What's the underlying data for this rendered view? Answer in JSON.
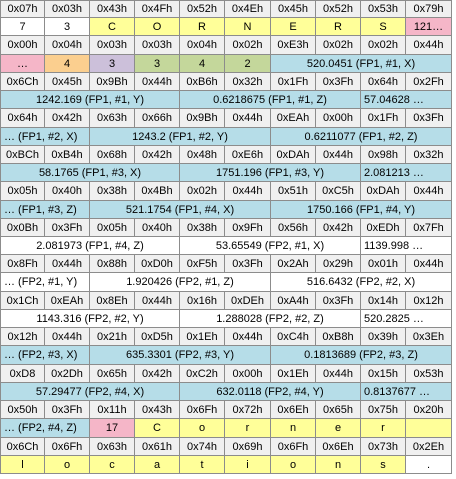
{
  "colors": {
    "white": "#ffffff",
    "grey": "#f0f0f0",
    "blue": "#b6dde8",
    "yellow": "#ffff99",
    "pink": "#f5b6c8",
    "orange": "#fbcf8f",
    "purple": "#ccc0da",
    "green": "#c4d79b"
  },
  "rows": [
    [
      {
        "t": "0x07h",
        "s": 1,
        "c": "grey"
      },
      {
        "t": "0x03h",
        "s": 1,
        "c": "grey"
      },
      {
        "t": "0x43h",
        "s": 1,
        "c": "grey"
      },
      {
        "t": "0x4Fh",
        "s": 1,
        "c": "grey"
      },
      {
        "t": "0x52h",
        "s": 1,
        "c": "grey"
      },
      {
        "t": "0x4Eh",
        "s": 1,
        "c": "grey"
      },
      {
        "t": "0x45h",
        "s": 1,
        "c": "grey"
      },
      {
        "t": "0x52h",
        "s": 1,
        "c": "grey"
      },
      {
        "t": "0x53h",
        "s": 1,
        "c": "grey"
      },
      {
        "t": "0x79h",
        "s": 1,
        "c": "grey"
      }
    ],
    [
      {
        "t": "7",
        "s": 1,
        "c": "white"
      },
      {
        "t": "3",
        "s": 1,
        "c": "white"
      },
      {
        "t": "C",
        "s": 1,
        "c": "yellow"
      },
      {
        "t": "O",
        "s": 1,
        "c": "yellow"
      },
      {
        "t": "R",
        "s": 1,
        "c": "yellow"
      },
      {
        "t": "N",
        "s": 1,
        "c": "yellow"
      },
      {
        "t": "E",
        "s": 1,
        "c": "yellow"
      },
      {
        "t": "R",
        "s": 1,
        "c": "yellow"
      },
      {
        "t": "S",
        "s": 1,
        "c": "yellow"
      },
      {
        "t": "121…",
        "s": 1,
        "c": "pink"
      }
    ],
    [
      {
        "t": "0x00h",
        "s": 1,
        "c": "grey"
      },
      {
        "t": "0x04h",
        "s": 1,
        "c": "grey"
      },
      {
        "t": "0x03h",
        "s": 1,
        "c": "grey"
      },
      {
        "t": "0x03h",
        "s": 1,
        "c": "grey"
      },
      {
        "t": "0x04h",
        "s": 1,
        "c": "grey"
      },
      {
        "t": "0x02h",
        "s": 1,
        "c": "grey"
      },
      {
        "t": "0xE3h",
        "s": 1,
        "c": "grey"
      },
      {
        "t": "0x02h",
        "s": 1,
        "c": "grey"
      },
      {
        "t": "0x02h",
        "s": 1,
        "c": "grey"
      },
      {
        "t": "0x44h",
        "s": 1,
        "c": "grey"
      }
    ],
    [
      {
        "t": "…",
        "s": 1,
        "c": "pink"
      },
      {
        "t": "4",
        "s": 1,
        "c": "orange"
      },
      {
        "t": "3",
        "s": 1,
        "c": "purple"
      },
      {
        "t": "3",
        "s": 1,
        "c": "green"
      },
      {
        "t": "4",
        "s": 1,
        "c": "green"
      },
      {
        "t": "2",
        "s": 1,
        "c": "green"
      },
      {
        "t": "520.0451 (FP1, #1, X)",
        "s": 4,
        "c": "blue",
        "a": "center"
      }
    ],
    [
      {
        "t": "0x6Ch",
        "s": 1,
        "c": "grey"
      },
      {
        "t": "0x45h",
        "s": 1,
        "c": "grey"
      },
      {
        "t": "0x9Bh",
        "s": 1,
        "c": "grey"
      },
      {
        "t": "0x44h",
        "s": 1,
        "c": "grey"
      },
      {
        "t": "0xB6h",
        "s": 1,
        "c": "grey"
      },
      {
        "t": "0x32h",
        "s": 1,
        "c": "grey"
      },
      {
        "t": "0x1Fh",
        "s": 1,
        "c": "grey"
      },
      {
        "t": "0x3Fh",
        "s": 1,
        "c": "grey"
      },
      {
        "t": "0x64h",
        "s": 1,
        "c": "grey"
      },
      {
        "t": "0x2Fh",
        "s": 1,
        "c": "grey"
      }
    ],
    [
      {
        "t": "1242.169 (FP1, #1, Y)",
        "s": 4,
        "c": "blue",
        "a": "center"
      },
      {
        "t": "0.6218675 (FP1, #1, Z)",
        "s": 4,
        "c": "blue",
        "a": "center"
      },
      {
        "t": "57.04628 …",
        "s": 2,
        "c": "blue",
        "a": "left"
      }
    ],
    [
      {
        "t": "0x64h",
        "s": 1,
        "c": "grey"
      },
      {
        "t": "0x42h",
        "s": 1,
        "c": "grey"
      },
      {
        "t": "0x63h",
        "s": 1,
        "c": "grey"
      },
      {
        "t": "0x66h",
        "s": 1,
        "c": "grey"
      },
      {
        "t": "0x9Bh",
        "s": 1,
        "c": "grey"
      },
      {
        "t": "0x44h",
        "s": 1,
        "c": "grey"
      },
      {
        "t": "0xEAh",
        "s": 1,
        "c": "grey"
      },
      {
        "t": "0x00h",
        "s": 1,
        "c": "grey"
      },
      {
        "t": "0x1Fh",
        "s": 1,
        "c": "grey"
      },
      {
        "t": "0x3Fh",
        "s": 1,
        "c": "grey"
      }
    ],
    [
      {
        "t": "… (FP1, #2, X)",
        "s": 2,
        "c": "blue",
        "a": "left"
      },
      {
        "t": "1243.2 (FP1, #2, Y)",
        "s": 4,
        "c": "blue",
        "a": "center"
      },
      {
        "t": "0.6211077 (FP1, #2, Z)",
        "s": 4,
        "c": "blue",
        "a": "center"
      }
    ],
    [
      {
        "t": "0xBCh",
        "s": 1,
        "c": "grey"
      },
      {
        "t": "0xB4h",
        "s": 1,
        "c": "grey"
      },
      {
        "t": "0x68h",
        "s": 1,
        "c": "grey"
      },
      {
        "t": "0x42h",
        "s": 1,
        "c": "grey"
      },
      {
        "t": "0x48h",
        "s": 1,
        "c": "grey"
      },
      {
        "t": "0xE6h",
        "s": 1,
        "c": "grey"
      },
      {
        "t": "0xDAh",
        "s": 1,
        "c": "grey"
      },
      {
        "t": "0x44h",
        "s": 1,
        "c": "grey"
      },
      {
        "t": "0x98h",
        "s": 1,
        "c": "grey"
      },
      {
        "t": "0x32h",
        "s": 1,
        "c": "grey"
      }
    ],
    [
      {
        "t": "58.1765 (FP1, #3, X)",
        "s": 4,
        "c": "blue",
        "a": "center"
      },
      {
        "t": "1751.196 (FP1, #3, Y)",
        "s": 4,
        "c": "blue",
        "a": "center"
      },
      {
        "t": "2.081213 …",
        "s": 2,
        "c": "blue",
        "a": "left"
      }
    ],
    [
      {
        "t": "0x05h",
        "s": 1,
        "c": "grey"
      },
      {
        "t": "0x40h",
        "s": 1,
        "c": "grey"
      },
      {
        "t": "0x38h",
        "s": 1,
        "c": "grey"
      },
      {
        "t": "0x4Bh",
        "s": 1,
        "c": "grey"
      },
      {
        "t": "0x02h",
        "s": 1,
        "c": "grey"
      },
      {
        "t": "0x44h",
        "s": 1,
        "c": "grey"
      },
      {
        "t": "0x51h",
        "s": 1,
        "c": "grey"
      },
      {
        "t": "0xC5h",
        "s": 1,
        "c": "grey"
      },
      {
        "t": "0xDAh",
        "s": 1,
        "c": "grey"
      },
      {
        "t": "0x44h",
        "s": 1,
        "c": "grey"
      }
    ],
    [
      {
        "t": "… (FP1, #3, Z)",
        "s": 2,
        "c": "blue",
        "a": "left"
      },
      {
        "t": "521.1754 (FP1, #4, X)",
        "s": 4,
        "c": "blue",
        "a": "center"
      },
      {
        "t": "1750.166 (FP1, #4, Y)",
        "s": 4,
        "c": "blue",
        "a": "center"
      }
    ],
    [
      {
        "t": "0x0Bh",
        "s": 1,
        "c": "grey"
      },
      {
        "t": "0x3Fh",
        "s": 1,
        "c": "grey"
      },
      {
        "t": "0x05h",
        "s": 1,
        "c": "grey"
      },
      {
        "t": "0x40h",
        "s": 1,
        "c": "grey"
      },
      {
        "t": "0x38h",
        "s": 1,
        "c": "grey"
      },
      {
        "t": "0x9Fh",
        "s": 1,
        "c": "grey"
      },
      {
        "t": "0x56h",
        "s": 1,
        "c": "grey"
      },
      {
        "t": "0x42h",
        "s": 1,
        "c": "grey"
      },
      {
        "t": "0xEDh",
        "s": 1,
        "c": "grey"
      },
      {
        "t": "0x7Fh",
        "s": 1,
        "c": "grey"
      }
    ],
    [
      {
        "t": "2.081973 (FP1, #4, Z)",
        "s": 4,
        "c": "white",
        "a": "center"
      },
      {
        "t": "53.65549 (FP2, #1, X)",
        "s": 4,
        "c": "white",
        "a": "center"
      },
      {
        "t": "1139.998 …",
        "s": 2,
        "c": "white",
        "a": "left"
      }
    ],
    [
      {
        "t": "0x8Fh",
        "s": 1,
        "c": "grey"
      },
      {
        "t": "0x44h",
        "s": 1,
        "c": "grey"
      },
      {
        "t": "0x88h",
        "s": 1,
        "c": "grey"
      },
      {
        "t": "0xD0h",
        "s": 1,
        "c": "grey"
      },
      {
        "t": "0xF5h",
        "s": 1,
        "c": "grey"
      },
      {
        "t": "0x3Fh",
        "s": 1,
        "c": "grey"
      },
      {
        "t": "0x2Ah",
        "s": 1,
        "c": "grey"
      },
      {
        "t": "0x29h",
        "s": 1,
        "c": "grey"
      },
      {
        "t": "0x01h",
        "s": 1,
        "c": "grey"
      },
      {
        "t": "0x44h",
        "s": 1,
        "c": "grey"
      }
    ],
    [
      {
        "t": "… (FP2, #1, Y)",
        "s": 2,
        "c": "white",
        "a": "left"
      },
      {
        "t": "1.920426 (FP2, #1, Z)",
        "s": 4,
        "c": "white",
        "a": "center"
      },
      {
        "t": "516.6432 (FP2, #2, X)",
        "s": 4,
        "c": "white",
        "a": "center"
      }
    ],
    [
      {
        "t": "0x1Ch",
        "s": 1,
        "c": "grey"
      },
      {
        "t": "0xEAh",
        "s": 1,
        "c": "grey"
      },
      {
        "t": "0x8Eh",
        "s": 1,
        "c": "grey"
      },
      {
        "t": "0x44h",
        "s": 1,
        "c": "grey"
      },
      {
        "t": "0x16h",
        "s": 1,
        "c": "grey"
      },
      {
        "t": "0xDEh",
        "s": 1,
        "c": "grey"
      },
      {
        "t": "0xA4h",
        "s": 1,
        "c": "grey"
      },
      {
        "t": "0x3Fh",
        "s": 1,
        "c": "grey"
      },
      {
        "t": "0x14h",
        "s": 1,
        "c": "grey"
      },
      {
        "t": "0x12h",
        "s": 1,
        "c": "grey"
      }
    ],
    [
      {
        "t": "1143.316 (FP2, #2, Y)",
        "s": 4,
        "c": "white",
        "a": "center"
      },
      {
        "t": "1.288028 (FP2, #2, Z)",
        "s": 4,
        "c": "white",
        "a": "center"
      },
      {
        "t": "520.2825 …",
        "s": 2,
        "c": "white",
        "a": "left"
      }
    ],
    [
      {
        "t": "0x12h",
        "s": 1,
        "c": "grey"
      },
      {
        "t": "0x44h",
        "s": 1,
        "c": "grey"
      },
      {
        "t": "0x21h",
        "s": 1,
        "c": "grey"
      },
      {
        "t": "0xD5h",
        "s": 1,
        "c": "grey"
      },
      {
        "t": "0x1Eh",
        "s": 1,
        "c": "grey"
      },
      {
        "t": "0x44h",
        "s": 1,
        "c": "grey"
      },
      {
        "t": "0xC4h",
        "s": 1,
        "c": "grey"
      },
      {
        "t": "0xB8h",
        "s": 1,
        "c": "grey"
      },
      {
        "t": "0x39h",
        "s": 1,
        "c": "grey"
      },
      {
        "t": "0x3Eh",
        "s": 1,
        "c": "grey"
      }
    ],
    [
      {
        "t": "… (FP2, #3, X)",
        "s": 2,
        "c": "blue",
        "a": "left"
      },
      {
        "t": "635.3301 (FP2, #3, Y)",
        "s": 4,
        "c": "blue",
        "a": "center"
      },
      {
        "t": "0.1813689 (FP2, #3, Z)",
        "s": 4,
        "c": "blue",
        "a": "center"
      }
    ],
    [
      {
        "t": "0xD8",
        "s": 1,
        "c": "grey"
      },
      {
        "t": "0x2Dh",
        "s": 1,
        "c": "grey"
      },
      {
        "t": "0x65h",
        "s": 1,
        "c": "grey"
      },
      {
        "t": "0x42h",
        "s": 1,
        "c": "grey"
      },
      {
        "t": "0xC2h",
        "s": 1,
        "c": "grey"
      },
      {
        "t": "0x00h",
        "s": 1,
        "c": "grey"
      },
      {
        "t": "0x1Eh",
        "s": 1,
        "c": "grey"
      },
      {
        "t": "0x44h",
        "s": 1,
        "c": "grey"
      },
      {
        "t": "0x15h",
        "s": 1,
        "c": "grey"
      },
      {
        "t": "0x53h",
        "s": 1,
        "c": "grey"
      }
    ],
    [
      {
        "t": "57.29477 (FP2, #4, X)",
        "s": 4,
        "c": "blue",
        "a": "center"
      },
      {
        "t": "632.0118 (FP2, #4, Y)",
        "s": 4,
        "c": "blue",
        "a": "center"
      },
      {
        "t": "0.8137677 …",
        "s": 2,
        "c": "blue",
        "a": "left"
      }
    ],
    [
      {
        "t": "0x50h",
        "s": 1,
        "c": "grey"
      },
      {
        "t": "0x3Fh",
        "s": 1,
        "c": "grey"
      },
      {
        "t": "0x11h",
        "s": 1,
        "c": "grey"
      },
      {
        "t": "0x43h",
        "s": 1,
        "c": "grey"
      },
      {
        "t": "0x6Fh",
        "s": 1,
        "c": "grey"
      },
      {
        "t": "0x72h",
        "s": 1,
        "c": "grey"
      },
      {
        "t": "0x6Eh",
        "s": 1,
        "c": "grey"
      },
      {
        "t": "0x65h",
        "s": 1,
        "c": "grey"
      },
      {
        "t": "0x75h",
        "s": 1,
        "c": "grey"
      },
      {
        "t": "0x20h",
        "s": 1,
        "c": "grey"
      }
    ],
    [
      {
        "t": "… (FP2, #4, Z)",
        "s": 2,
        "c": "blue",
        "a": "left"
      },
      {
        "t": "17",
        "s": 1,
        "c": "pink"
      },
      {
        "t": "C",
        "s": 1,
        "c": "yellow"
      },
      {
        "t": "o",
        "s": 1,
        "c": "yellow"
      },
      {
        "t": "r",
        "s": 1,
        "c": "yellow"
      },
      {
        "t": "n",
        "s": 1,
        "c": "yellow"
      },
      {
        "t": "e",
        "s": 1,
        "c": "yellow"
      },
      {
        "t": "r",
        "s": 1,
        "c": "yellow"
      },
      {
        "t": "",
        "s": 1,
        "c": "yellow"
      }
    ],
    [
      {
        "t": "0x6Ch",
        "s": 1,
        "c": "grey"
      },
      {
        "t": "0x6Fh",
        "s": 1,
        "c": "grey"
      },
      {
        "t": "0x63h",
        "s": 1,
        "c": "grey"
      },
      {
        "t": "0x61h",
        "s": 1,
        "c": "grey"
      },
      {
        "t": "0x74h",
        "s": 1,
        "c": "grey"
      },
      {
        "t": "0x69h",
        "s": 1,
        "c": "grey"
      },
      {
        "t": "0x6Fh",
        "s": 1,
        "c": "grey"
      },
      {
        "t": "0x6Eh",
        "s": 1,
        "c": "grey"
      },
      {
        "t": "0x73h",
        "s": 1,
        "c": "grey"
      },
      {
        "t": "0x2Eh",
        "s": 1,
        "c": "grey"
      }
    ],
    [
      {
        "t": "l",
        "s": 1,
        "c": "yellow"
      },
      {
        "t": "o",
        "s": 1,
        "c": "yellow"
      },
      {
        "t": "c",
        "s": 1,
        "c": "yellow"
      },
      {
        "t": "a",
        "s": 1,
        "c": "yellow"
      },
      {
        "t": "t",
        "s": 1,
        "c": "yellow"
      },
      {
        "t": "i",
        "s": 1,
        "c": "yellow"
      },
      {
        "t": "o",
        "s": 1,
        "c": "yellow"
      },
      {
        "t": "n",
        "s": 1,
        "c": "yellow"
      },
      {
        "t": "s",
        "s": 1,
        "c": "yellow"
      },
      {
        "t": ".",
        "s": 1,
        "c": "white"
      }
    ]
  ]
}
